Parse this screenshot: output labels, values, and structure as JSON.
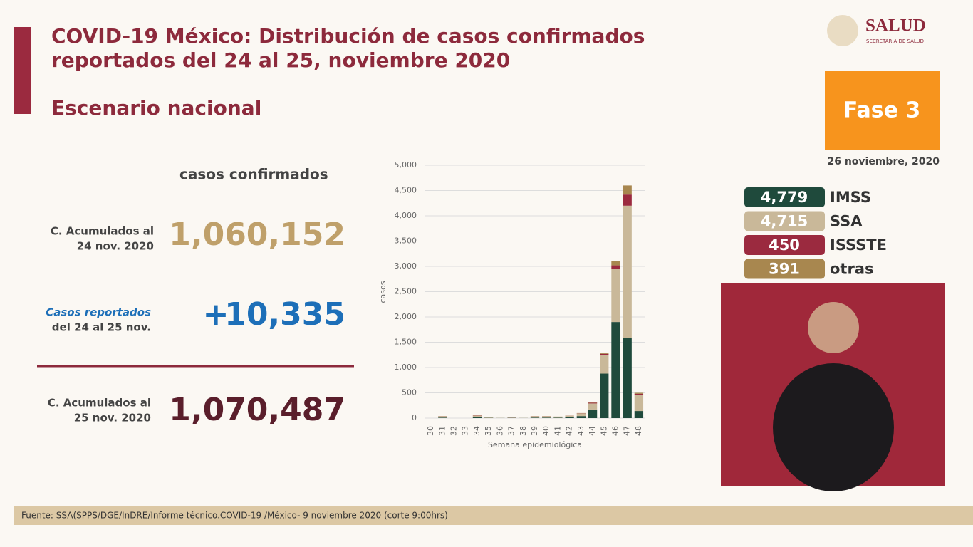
{
  "header": {
    "title_lines": [
      "COVID-19 México: Distribución de casos confirmados",
      "reportados del 24 al 25, noviembre 2020"
    ],
    "subtitle": "Escenario nacional"
  },
  "logo": {
    "name": "SALUD",
    "sub": "SECRETARÍA DE SALUD"
  },
  "phase": {
    "label": "Fase 3",
    "date": "26 noviembre, 2020"
  },
  "summary": {
    "heading": "casos confirmados",
    "previous": {
      "label_lines": [
        "C. Acumulados al",
        "24 nov. 2020"
      ],
      "value": "1,060,152"
    },
    "reported": {
      "label_lines": [
        "Casos reportados",
        "del 24 al 25 nov."
      ],
      "sign": "+",
      "value": "10,335"
    },
    "current": {
      "label_lines": [
        "C. Acumulados al",
        "25 nov. 2020"
      ],
      "value": "1,070,487"
    }
  },
  "institutions": [
    {
      "value": "4,779",
      "name": "IMSS"
    },
    {
      "value": "4,715",
      "name": "SSA"
    },
    {
      "value": "450",
      "name": "ISSSTE"
    },
    {
      "value": "391",
      "name": "otras"
    }
  ],
  "chart_data": {
    "type": "stacked_bar",
    "x_label": "Semana epidemiológica",
    "y_label": "casos",
    "categories": [
      "30",
      "31",
      "32",
      "33",
      "34",
      "35",
      "36",
      "37",
      "38",
      "39",
      "40",
      "41",
      "42",
      "43",
      "44",
      "45",
      "46",
      "47",
      "48"
    ],
    "series": [
      {
        "name": "IMSS",
        "color": "#1f4a3c",
        "values": [
          0,
          10,
          0,
          0,
          15,
          5,
          2,
          5,
          2,
          10,
          10,
          8,
          15,
          40,
          170,
          880,
          1900,
          1580,
          140
        ]
      },
      {
        "name": "SSA",
        "color": "#c9b899",
        "values": [
          0,
          25,
          0,
          0,
          35,
          10,
          3,
          8,
          3,
          25,
          25,
          18,
          30,
          50,
          120,
          370,
          1050,
          2620,
          320
        ]
      },
      {
        "name": "ISSSTE",
        "color": "#9b2a3f",
        "values": [
          0,
          2,
          0,
          0,
          5,
          2,
          0,
          1,
          0,
          2,
          2,
          2,
          2,
          5,
          15,
          20,
          70,
          220,
          20
        ]
      },
      {
        "name": "otras",
        "color": "#a8874f",
        "values": [
          0,
          3,
          0,
          0,
          5,
          3,
          0,
          1,
          0,
          3,
          3,
          2,
          3,
          5,
          15,
          20,
          80,
          180,
          20
        ]
      }
    ],
    "ylim": [
      0,
      5000
    ],
    "yticks": [
      0,
      500,
      {
        "value": 1000,
        "label": "1,000"
      },
      {
        "value": 1500,
        "label": "1,500"
      },
      {
        "value": 2000,
        "label": "2,000"
      },
      {
        "value": 2500,
        "label": "2,500"
      },
      {
        "value": 3000,
        "label": "3,000"
      },
      {
        "value": 3500,
        "label": "3,500"
      },
      {
        "value": 4000,
        "label": "4,000"
      },
      {
        "value": 4500,
        "label": "4,500"
      },
      {
        "value": 5000,
        "label": "5,000"
      }
    ],
    "grid": true
  },
  "footer": "Fuente: SSA(SPPS/DGE/InDRE/Informe técnico.COVID-19 /México-  9 noviembre 2020 (corte 9:00hrs)"
}
